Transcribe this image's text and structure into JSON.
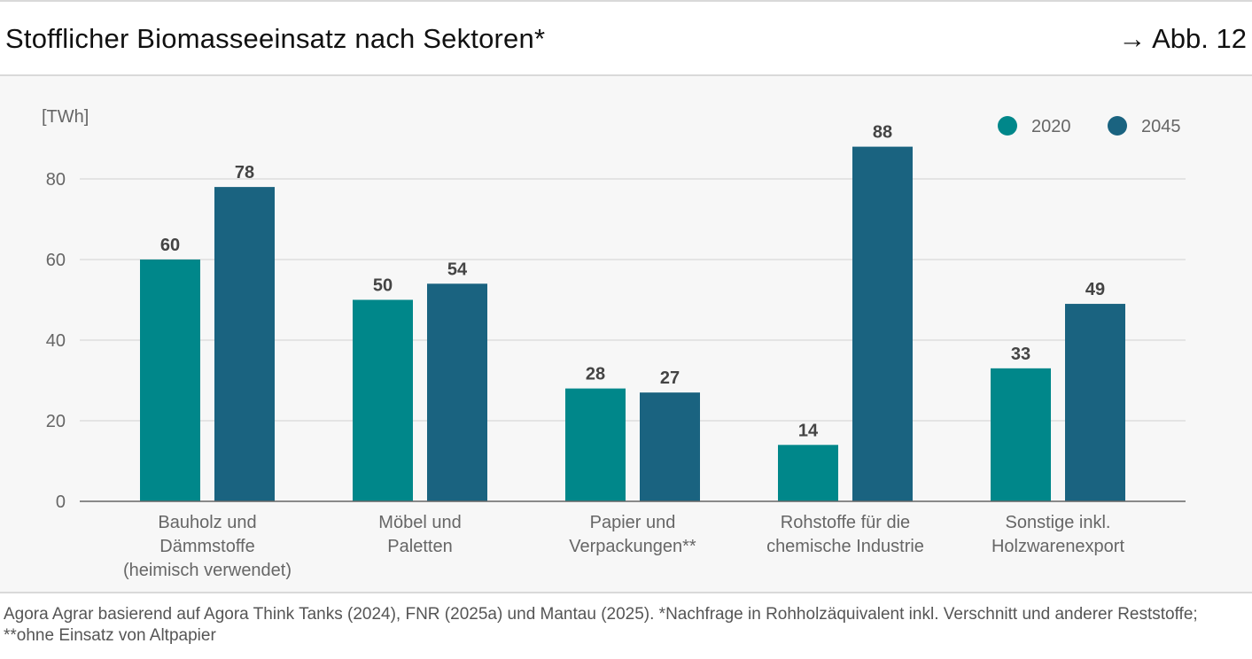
{
  "header": {
    "title": "Stofflicher Biomasseeinsatz nach Sektoren*",
    "figure_ref": "→ Abb. 12"
  },
  "footer": {
    "source_text": "Agora Agrar basierend auf Agora Think Tanks (2024), FNR (2025a) und Mantau (2025). *Nachfrage in Rohholzäquivalent inkl. Verschnitt und anderer Reststoffe; **ohne Einsatz von Altpapier"
  },
  "colors": {
    "series_2020": "#00878a",
    "series_2045": "#1a6380",
    "grid": "#e4e4e4",
    "axis": "#666666"
  },
  "chart_data": {
    "type": "bar",
    "title": "Stofflicher Biomasseeinsatz nach Sektoren*",
    "unit_label": "[TWh]",
    "ylabel": "[TWh]",
    "xlabel": "",
    "ylim": [
      0,
      90
    ],
    "yticks": [
      0,
      20,
      40,
      60,
      80
    ],
    "grid": true,
    "legend_position": "top-right",
    "categories": [
      [
        "Bauholz und",
        "Dämmstoffe",
        "(heimisch verwendet)"
      ],
      [
        "Möbel und",
        "Paletten"
      ],
      [
        "Papier und",
        "Verpackungen**"
      ],
      [
        "Rohstoffe für die",
        "chemische Industrie"
      ],
      [
        "Sonstige inkl.",
        "Holzwarenexport"
      ]
    ],
    "series": [
      {
        "name": "2020",
        "values": [
          60,
          50,
          28,
          14,
          33
        ]
      },
      {
        "name": "2045",
        "values": [
          78,
          54,
          27,
          88,
          49
        ]
      }
    ]
  }
}
